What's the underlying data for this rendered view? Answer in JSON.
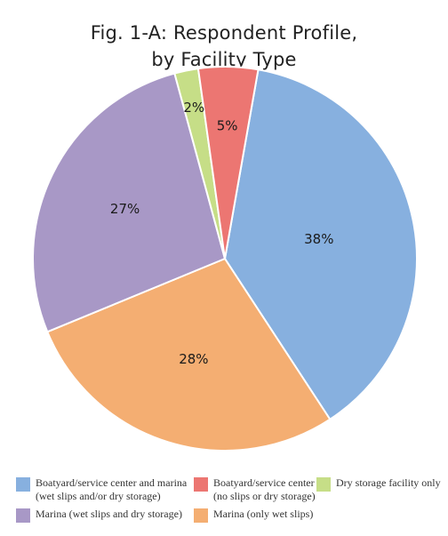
{
  "chart_data": {
    "type": "pie",
    "title_line1": "Fig. 1-A: Respondent Profile,",
    "title_line2": "by Facility Type",
    "slices": [
      {
        "value": 38,
        "label": "38%",
        "color": "#87b0df",
        "legend_line1": "Boatyard/service center and marina",
        "legend_line2": "(wet slips and/or dry storage)"
      },
      {
        "value": 28,
        "label": "28%",
        "color": "#f4ae72",
        "legend_line1": "Marina (only wet slips)",
        "legend_line2": ""
      },
      {
        "value": 27,
        "label": "27%",
        "color": "#a898c6",
        "legend_line1": "Marina (wet slips and dry storage)",
        "legend_line2": ""
      },
      {
        "value": 2,
        "label": "2%",
        "color": "#c6de87",
        "legend_line1": "Dry storage facility only",
        "legend_line2": ""
      },
      {
        "value": 5,
        "label": "5%",
        "color": "#ec7672",
        "legend_line1": "Boatyard/service center",
        "legend_line2": "(no slips or dry storage)"
      }
    ]
  }
}
